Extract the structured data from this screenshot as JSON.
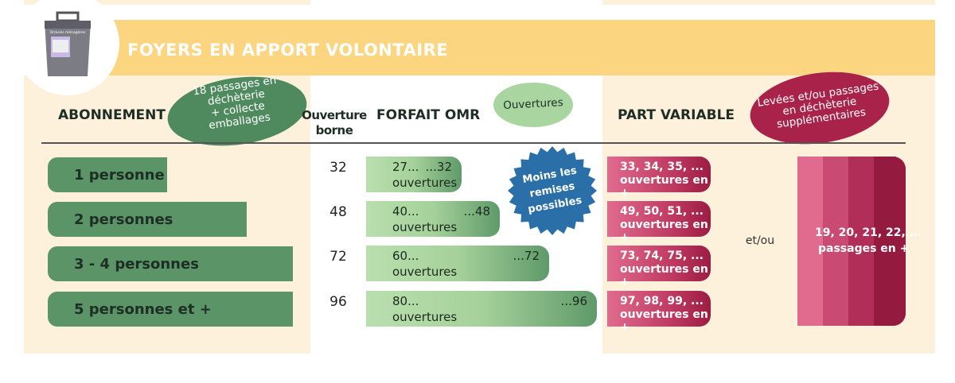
{
  "header": {
    "title": "FOYERS EN APPORT VOLONTAIRE",
    "bin_label": "Ordures ménagères"
  },
  "abonnement": {
    "title": "ABONNEMENT",
    "badge": "18 passages en\ndéchèterie\n+ collecte\nemballages",
    "rows": [
      "1 personne",
      "2 personnes",
      "3 - 4 personnes",
      "5 personnes et +"
    ]
  },
  "ouverture": {
    "title": "Ouverture\nborne",
    "values": [
      "32",
      "48",
      "72",
      "96"
    ]
  },
  "forfait": {
    "title": "FORFAIT OMR",
    "badge": "Ouvertures",
    "rows": [
      {
        "start": "27...",
        "end": "...32",
        "unit": "ouvertures"
      },
      {
        "start": "40...",
        "end": "...48",
        "unit": "ouvertures"
      },
      {
        "start": "60...",
        "end": "...72",
        "unit": "ouvertures"
      },
      {
        "start": "80...",
        "end": "...96",
        "unit": "ouvertures"
      }
    ]
  },
  "stamp": "Moins les\nremises\npossibles",
  "part_variable": {
    "title": "PART VARIABLE",
    "badge": "Levées et/ou passages\nen déchèterie\nsupplémentaires",
    "rows": [
      {
        "line1": "33, 34, 35, ...",
        "line2": "ouvertures en +"
      },
      {
        "line1": "49, 50, 51, ...",
        "line2": "ouvertures en +"
      },
      {
        "line1": "73, 74, 75, ...",
        "line2": "ouvertures en +"
      },
      {
        "line1": "97, 98, 99, ...",
        "line2": "ouvertures en +"
      }
    ],
    "connector": "et/ou",
    "passages": {
      "line1": "19, 20, 21, 22, ...",
      "line2": "passages en +"
    }
  }
}
